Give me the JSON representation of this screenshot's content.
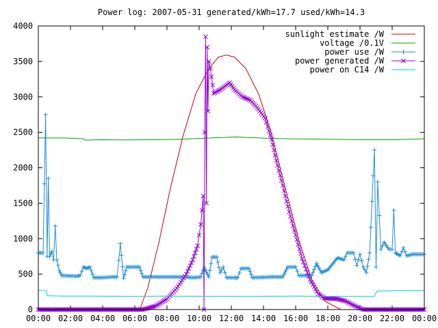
{
  "chart_data": {
    "type": "line",
    "title": "Power log: 2007-05-31 generated/kWh=17.7 used/kWh=14.3",
    "xlabel": "",
    "ylabel": "",
    "xlim": [
      0,
      24
    ],
    "ylim": [
      0,
      4000
    ],
    "x_ticks": [
      "00:00",
      "02:00",
      "04:00",
      "06:00",
      "08:00",
      "10:00",
      "12:00",
      "14:00",
      "16:00",
      "18:00",
      "20:00",
      "22:00",
      "00:00"
    ],
    "y_ticks": [
      "0",
      "500",
      "1000",
      "1500",
      "2000",
      "2500",
      "3000",
      "3500",
      "4000"
    ],
    "grid": false,
    "legend_position": "top-right",
    "series": [
      {
        "name": "sunlight estimate /W",
        "color": "#cc0000",
        "marker": "none",
        "points": [
          [
            0,
            0
          ],
          [
            6.3,
            0
          ],
          [
            6.8,
            300
          ],
          [
            7.5,
            950
          ],
          [
            8.2,
            1700
          ],
          [
            9.0,
            2450
          ],
          [
            9.8,
            3050
          ],
          [
            10.6,
            3400
          ],
          [
            11.2,
            3560
          ],
          [
            11.7,
            3590
          ],
          [
            12.2,
            3560
          ],
          [
            12.9,
            3400
          ],
          [
            13.7,
            3040
          ],
          [
            14.5,
            2480
          ],
          [
            15.3,
            1760
          ],
          [
            16.2,
            980
          ],
          [
            17.0,
            420
          ],
          [
            17.8,
            120
          ],
          [
            18.8,
            0
          ],
          [
            24,
            0
          ]
        ]
      },
      {
        "name": "voltage /0.1V",
        "color": "#00a000",
        "marker": "none",
        "points": [
          [
            0,
            2420
          ],
          [
            1.5,
            2420
          ],
          [
            2.8,
            2410
          ],
          [
            2.9,
            2390
          ],
          [
            4,
            2395
          ],
          [
            5.3,
            2392
          ],
          [
            7,
            2395
          ],
          [
            8.5,
            2400
          ],
          [
            10.2,
            2415
          ],
          [
            12.3,
            2435
          ],
          [
            14.2,
            2415
          ],
          [
            15.5,
            2410
          ],
          [
            17,
            2405
          ],
          [
            19,
            2400
          ],
          [
            20.5,
            2395
          ],
          [
            22,
            2395
          ],
          [
            23.5,
            2405
          ],
          [
            24,
            2410
          ]
        ]
      },
      {
        "name": "power use /W",
        "color": "#1e8bd6",
        "marker": "plus",
        "points": [
          [
            0,
            800
          ],
          [
            0.3,
            800
          ],
          [
            0.45,
            2750
          ],
          [
            0.55,
            750
          ],
          [
            0.62,
            1850
          ],
          [
            0.7,
            750
          ],
          [
            0.85,
            820
          ],
          [
            0.95,
            700
          ],
          [
            1.05,
            1180
          ],
          [
            1.15,
            700
          ],
          [
            1.3,
            550
          ],
          [
            1.45,
            480
          ],
          [
            2.4,
            470
          ],
          [
            2.6,
            480
          ],
          [
            2.8,
            600
          ],
          [
            3.0,
            580
          ],
          [
            3.2,
            600
          ],
          [
            3.45,
            450
          ],
          [
            4.0,
            450
          ],
          [
            4.6,
            460
          ],
          [
            4.9,
            460
          ],
          [
            5.1,
            930
          ],
          [
            5.3,
            440
          ],
          [
            5.5,
            600
          ],
          [
            6.3,
            600
          ],
          [
            6.5,
            460
          ],
          [
            7.5,
            460
          ],
          [
            9.0,
            460
          ],
          [
            9.7,
            450
          ],
          [
            10.1,
            460
          ],
          [
            10.3,
            600
          ],
          [
            10.6,
            460
          ],
          [
            10.8,
            740
          ],
          [
            11.1,
            740
          ],
          [
            11.3,
            520
          ],
          [
            11.5,
            600
          ],
          [
            11.7,
            450
          ],
          [
            12.2,
            450
          ],
          [
            12.4,
            450
          ],
          [
            12.6,
            580
          ],
          [
            13.1,
            580
          ],
          [
            13.3,
            450
          ],
          [
            14.5,
            460
          ],
          [
            15.2,
            460
          ],
          [
            15.5,
            600
          ],
          [
            16.0,
            600
          ],
          [
            16.2,
            480
          ],
          [
            17.0,
            480
          ],
          [
            17.3,
            650
          ],
          [
            17.6,
            520
          ],
          [
            18.0,
            560
          ],
          [
            18.6,
            730
          ],
          [
            19.0,
            700
          ],
          [
            19.2,
            800
          ],
          [
            19.6,
            800
          ],
          [
            19.8,
            620
          ],
          [
            20.0,
            780
          ],
          [
            20.2,
            600
          ],
          [
            20.4,
            520
          ],
          [
            20.6,
            800
          ],
          [
            20.9,
            2250
          ],
          [
            21.0,
            600
          ],
          [
            21.1,
            1800
          ],
          [
            21.3,
            850
          ],
          [
            21.5,
            950
          ],
          [
            21.8,
            850
          ],
          [
            22.0,
            850
          ],
          [
            22.1,
            1400
          ],
          [
            22.2,
            800
          ],
          [
            22.5,
            760
          ],
          [
            22.7,
            870
          ],
          [
            22.9,
            760
          ],
          [
            23.3,
            780
          ],
          [
            23.6,
            780
          ],
          [
            24,
            780
          ]
        ]
      },
      {
        "name": "power generated /W",
        "color": "#9400d3",
        "marker": "cross",
        "points": [
          [
            0,
            0
          ],
          [
            6.5,
            0
          ],
          [
            7.3,
            50
          ],
          [
            8.0,
            150
          ],
          [
            8.6,
            300
          ],
          [
            9.2,
            500
          ],
          [
            9.6,
            700
          ],
          [
            9.9,
            900
          ],
          [
            10.1,
            1200
          ],
          [
            10.25,
            1600
          ],
          [
            10.3,
            0
          ],
          [
            10.35,
            2500
          ],
          [
            10.4,
            3850
          ],
          [
            10.45,
            1500
          ],
          [
            10.5,
            3700
          ],
          [
            10.55,
            2800
          ],
          [
            10.6,
            3500
          ],
          [
            10.7,
            3400
          ],
          [
            10.9,
            3050
          ],
          [
            11.3,
            3100
          ],
          [
            11.9,
            3200
          ],
          [
            12.2,
            3100
          ],
          [
            12.7,
            3000
          ],
          [
            13.2,
            2950
          ],
          [
            13.6,
            2850
          ],
          [
            14.1,
            2700
          ],
          [
            14.5,
            2400
          ],
          [
            14.8,
            2100
          ],
          [
            15.2,
            1750
          ],
          [
            15.6,
            1380
          ],
          [
            16.0,
            1050
          ],
          [
            16.4,
            720
          ],
          [
            16.9,
            420
          ],
          [
            17.4,
            220
          ],
          [
            17.8,
            160
          ],
          [
            18.6,
            150
          ],
          [
            19.1,
            120
          ],
          [
            19.6,
            60
          ],
          [
            20.2,
            0
          ],
          [
            24,
            0
          ]
        ]
      },
      {
        "name": "power on C14 /W",
        "color": "#00cccc",
        "marker": "none",
        "points": [
          [
            0,
            270
          ],
          [
            0.5,
            270
          ],
          [
            0.55,
            195
          ],
          [
            1.5,
            190
          ],
          [
            3,
            190
          ],
          [
            6,
            185
          ],
          [
            8,
            190
          ],
          [
            12,
            185
          ],
          [
            16,
            190
          ],
          [
            18,
            185
          ],
          [
            20,
            185
          ],
          [
            20.9,
            185
          ],
          [
            21.05,
            260
          ],
          [
            22,
            265
          ],
          [
            24,
            265
          ]
        ]
      }
    ]
  }
}
